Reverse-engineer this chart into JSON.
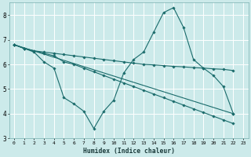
{
  "xlabel": "Humidex (Indice chaleur)",
  "bg_color": "#cceaea",
  "grid_color": "#ffffff",
  "line_color": "#1a6b6b",
  "xlim": [
    -0.5,
    23.5
  ],
  "ylim": [
    3,
    8.5
  ],
  "yticks": [
    3,
    4,
    5,
    6,
    7,
    8
  ],
  "xticks": [
    0,
    1,
    2,
    3,
    4,
    5,
    6,
    7,
    8,
    9,
    10,
    11,
    12,
    13,
    14,
    15,
    16,
    17,
    18,
    19,
    20,
    21,
    22,
    23
  ],
  "lines": [
    {
      "x": [
        0,
        1,
        2,
        3,
        4,
        5,
        6,
        7,
        8,
        9,
        10,
        11,
        12,
        13,
        14,
        15,
        16,
        17,
        18,
        19,
        20,
        21,
        22
      ],
      "y": [
        6.8,
        6.65,
        6.5,
        6.1,
        5.85,
        4.65,
        4.4,
        4.1,
        3.4,
        4.1,
        4.55,
        5.65,
        6.2,
        6.5,
        7.3,
        8.1,
        8.3,
        7.5,
        6.2,
        5.85,
        5.55,
        5.1,
        4.0
      ]
    },
    {
      "x": [
        0,
        1,
        2,
        3,
        4,
        5,
        6,
        7,
        8,
        9,
        10,
        11,
        12,
        13,
        14,
        15,
        16,
        17,
        18,
        19,
        20,
        21,
        22
      ],
      "y": [
        6.8,
        6.65,
        6.55,
        6.5,
        6.45,
        6.4,
        6.35,
        6.3,
        6.25,
        6.2,
        6.15,
        6.1,
        6.05,
        6.0,
        5.98,
        5.95,
        5.92,
        5.9,
        5.87,
        5.85,
        5.82,
        5.8,
        5.75
      ]
    },
    {
      "x": [
        0,
        22
      ],
      "y": [
        6.8,
        4.0
      ]
    },
    {
      "x": [
        0,
        1,
        2,
        3,
        4,
        5,
        6,
        7,
        8,
        9,
        10,
        11,
        12,
        13,
        14,
        15,
        16,
        17,
        18,
        19,
        20,
        21,
        22
      ],
      "y": [
        6.8,
        6.65,
        6.55,
        6.45,
        6.35,
        6.1,
        6.0,
        5.85,
        5.7,
        5.55,
        5.4,
        5.25,
        5.1,
        4.95,
        4.8,
        4.65,
        4.5,
        4.35,
        4.2,
        4.05,
        3.9,
        3.75,
        3.6
      ]
    }
  ]
}
